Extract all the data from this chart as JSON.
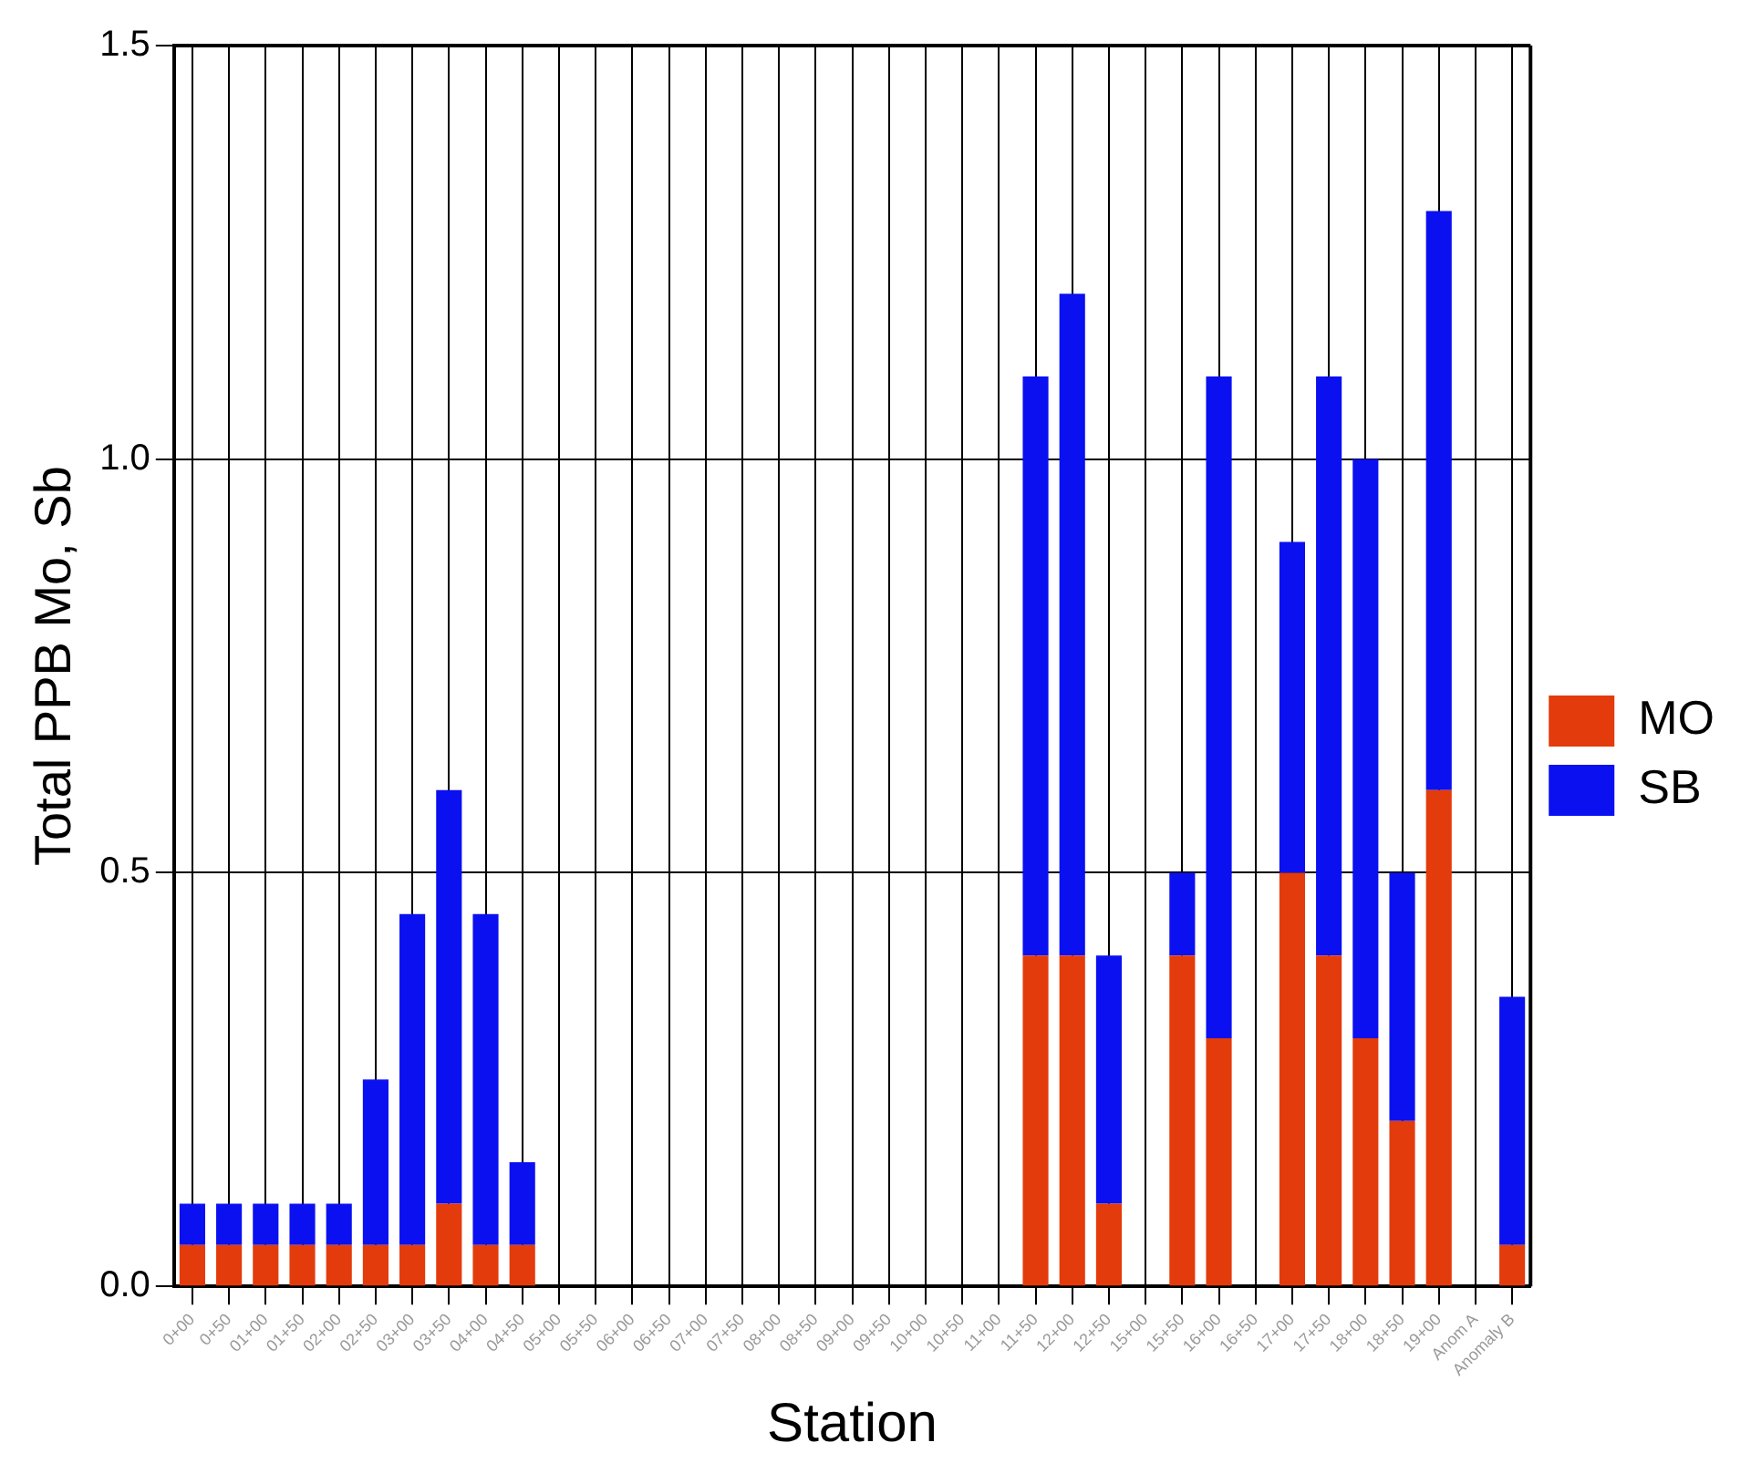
{
  "chart_data": {
    "type": "bar",
    "stacked": true,
    "xlabel": "Station",
    "ylabel": "Total PPB Mo, Sb",
    "categories": [
      "0+00",
      "0+50",
      "01+00",
      "01+50",
      "02+00",
      "02+50",
      "03+00",
      "03+50",
      "04+00",
      "04+50",
      "05+00",
      "05+50",
      "06+00",
      "06+50",
      "07+00",
      "07+50",
      "08+00",
      "08+50",
      "09+00",
      "09+50",
      "10+00",
      "10+50",
      "11+00",
      "11+50",
      "12+00",
      "12+50",
      "15+00",
      "15+50",
      "16+00",
      "16+50",
      "17+00",
      "17+50",
      "18+00",
      "18+50",
      "19+00",
      "Anom A",
      "Anomaly B"
    ],
    "series": [
      {
        "name": "MO",
        "color": "#e33b0c",
        "values": [
          0.05,
          0.05,
          0.05,
          0.05,
          0.05,
          0.05,
          0.05,
          0.1,
          0.05,
          0.05,
          null,
          null,
          null,
          null,
          null,
          null,
          null,
          null,
          null,
          null,
          null,
          null,
          null,
          0.4,
          0.4,
          0.1,
          null,
          0.4,
          0.3,
          null,
          0.5,
          0.4,
          0.3,
          0.2,
          0.6,
          null,
          0.05
        ]
      },
      {
        "name": "SB",
        "color": "#0a10f0",
        "values": [
          0.05,
          0.05,
          0.05,
          0.05,
          0.05,
          0.2,
          0.4,
          0.5,
          0.4,
          0.1,
          null,
          null,
          null,
          null,
          null,
          null,
          null,
          null,
          null,
          null,
          null,
          null,
          null,
          0.7,
          0.8,
          0.3,
          null,
          0.1,
          0.8,
          null,
          0.4,
          0.7,
          0.7,
          0.3,
          0.7,
          null,
          0.3
        ]
      }
    ],
    "ylim": [
      0,
      1.5
    ],
    "yticks": [
      {
        "value": 0,
        "label": "0.0"
      },
      {
        "value": 0.5,
        "label": "0.5"
      },
      {
        "value": 1,
        "label": "1.0"
      },
      {
        "value": 1.5,
        "label": "1.5"
      }
    ],
    "grid": true,
    "legend": "right"
  }
}
